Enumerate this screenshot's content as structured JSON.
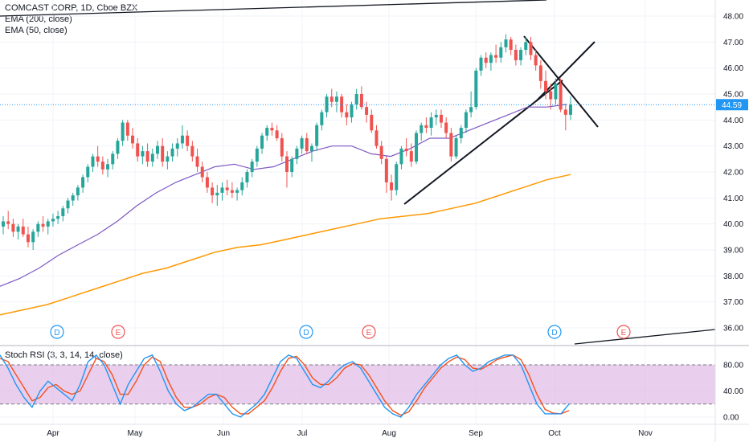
{
  "header": {
    "symbol_line": "COMCAST CORP, 1D, Cboe BZX",
    "ema200_label": "EMA (200, close)",
    "ema50_label": "EMA (50, close)"
  },
  "price_axis": {
    "ticks": [
      "48.00",
      "47.00",
      "46.00",
      "45.00",
      "44.00",
      "43.00",
      "42.00",
      "41.00",
      "40.00",
      "39.00",
      "38.00",
      "37.00",
      "36.00"
    ],
    "current_price": "44.59"
  },
  "time_axis": {
    "labels": [
      "Apr",
      "May",
      "Jun",
      "Jul",
      "Aug",
      "Sep",
      "Oct",
      "Nov"
    ]
  },
  "events": [
    "D",
    "E",
    "D",
    "E",
    "D",
    "E"
  ],
  "stoch_panel": {
    "title": "Stoch RSI (3, 3, 14, 14, close)",
    "ticks": [
      "80.00",
      "40.00",
      "0.00"
    ]
  },
  "colors": {
    "up": "#26a69a",
    "down": "#ef5350",
    "ema50": "#7e57c2",
    "ema200": "#ff9800",
    "stoch_k": "#2196f3",
    "stoch_d": "#f4511e",
    "band": "#e1bee7",
    "event_D": "#2196f3",
    "event_E": "#ef5350"
  },
  "chart_data": {
    "type": "candlestick",
    "title": "COMCAST CORP, 1D, Cboe BZX",
    "series": [
      {
        "name": "COMCAST CORP",
        "kind": "ohlc",
        "values": [
          [
            39.9,
            40.3,
            39.6,
            40.1
          ],
          [
            40.1,
            40.5,
            39.8,
            40.0
          ],
          [
            40.0,
            40.2,
            39.5,
            39.7
          ],
          [
            39.7,
            40.0,
            39.4,
            39.9
          ],
          [
            39.9,
            40.2,
            39.5,
            39.6
          ],
          [
            39.6,
            39.9,
            39.1,
            39.3
          ],
          [
            39.3,
            39.8,
            39.0,
            39.7
          ],
          [
            39.7,
            40.1,
            39.5,
            40.0
          ],
          [
            40.0,
            40.3,
            39.7,
            39.9
          ],
          [
            39.9,
            40.2,
            39.6,
            40.1
          ],
          [
            40.1,
            40.4,
            39.9,
            40.2
          ],
          [
            40.2,
            40.5,
            40.0,
            40.3
          ],
          [
            40.3,
            40.7,
            40.1,
            40.6
          ],
          [
            40.6,
            41.0,
            40.4,
            40.9
          ],
          [
            40.9,
            41.2,
            40.7,
            41.1
          ],
          [
            41.1,
            41.5,
            40.9,
            41.4
          ],
          [
            41.4,
            41.9,
            41.2,
            41.8
          ],
          [
            41.8,
            42.3,
            41.6,
            42.2
          ],
          [
            42.2,
            42.7,
            42.0,
            42.6
          ],
          [
            42.6,
            43.0,
            42.2,
            42.4
          ],
          [
            42.4,
            42.6,
            41.9,
            42.1
          ],
          [
            42.1,
            42.5,
            41.8,
            42.3
          ],
          [
            42.3,
            42.8,
            42.1,
            42.7
          ],
          [
            42.7,
            43.3,
            42.5,
            43.2
          ],
          [
            43.2,
            44.0,
            43.0,
            43.9
          ],
          [
            43.9,
            44.0,
            43.2,
            43.4
          ],
          [
            43.4,
            43.7,
            42.9,
            43.1
          ],
          [
            43.1,
            43.3,
            42.4,
            42.6
          ],
          [
            42.6,
            43.0,
            42.3,
            42.8
          ],
          [
            42.8,
            43.1,
            42.2,
            42.4
          ],
          [
            42.4,
            42.9,
            42.2,
            42.7
          ],
          [
            42.7,
            43.2,
            42.5,
            43.0
          ],
          [
            43.0,
            43.3,
            42.2,
            42.4
          ],
          [
            42.4,
            42.8,
            42.1,
            42.6
          ],
          [
            42.6,
            43.1,
            42.4,
            42.9
          ],
          [
            42.9,
            43.3,
            42.6,
            43.1
          ],
          [
            43.1,
            43.8,
            42.9,
            43.4
          ],
          [
            43.4,
            43.6,
            42.8,
            43.0
          ],
          [
            43.0,
            43.2,
            42.4,
            42.6
          ],
          [
            42.6,
            42.9,
            42.0,
            42.2
          ],
          [
            42.2,
            42.4,
            41.6,
            41.8
          ],
          [
            41.8,
            42.0,
            41.2,
            41.4
          ],
          [
            41.4,
            41.6,
            40.8,
            41.1
          ],
          [
            41.1,
            41.5,
            40.7,
            41.2
          ],
          [
            41.2,
            41.6,
            40.9,
            41.4
          ],
          [
            41.4,
            41.7,
            41.1,
            41.3
          ],
          [
            41.3,
            41.6,
            41.0,
            41.2
          ],
          [
            41.2,
            41.4,
            40.9,
            41.3
          ],
          [
            41.3,
            41.8,
            41.1,
            41.6
          ],
          [
            41.6,
            42.1,
            41.4,
            42.0
          ],
          [
            42.0,
            42.5,
            41.8,
            42.4
          ],
          [
            42.4,
            43.0,
            42.2,
            42.9
          ],
          [
            42.9,
            43.5,
            42.7,
            43.4
          ],
          [
            43.4,
            43.8,
            43.2,
            43.7
          ],
          [
            43.7,
            43.9,
            43.4,
            43.6
          ],
          [
            43.6,
            43.8,
            43.2,
            43.3
          ],
          [
            43.3,
            43.5,
            42.4,
            42.6
          ],
          [
            42.6,
            42.8,
            41.4,
            42.0
          ],
          [
            42.0,
            42.6,
            41.8,
            42.5
          ],
          [
            42.5,
            43.0,
            42.3,
            42.9
          ],
          [
            42.9,
            43.4,
            42.7,
            43.3
          ],
          [
            43.3,
            43.5,
            42.7,
            42.8
          ],
          [
            42.8,
            43.1,
            42.4,
            43.0
          ],
          [
            43.0,
            43.9,
            42.8,
            43.8
          ],
          [
            43.8,
            44.4,
            43.6,
            44.3
          ],
          [
            44.3,
            45.0,
            44.1,
            44.9
          ],
          [
            44.9,
            45.2,
            44.5,
            44.7
          ],
          [
            44.7,
            45.1,
            44.3,
            44.9
          ],
          [
            44.9,
            45.0,
            44.1,
            44.3
          ],
          [
            44.3,
            44.6,
            43.8,
            44.1
          ],
          [
            44.1,
            44.7,
            43.9,
            44.6
          ],
          [
            44.6,
            45.2,
            44.4,
            45.0
          ],
          [
            45.0,
            45.3,
            44.4,
            44.5
          ],
          [
            44.5,
            44.7,
            43.9,
            44.2
          ],
          [
            44.2,
            44.4,
            43.5,
            43.6
          ],
          [
            43.6,
            43.8,
            42.9,
            43.0
          ],
          [
            43.0,
            43.2,
            42.3,
            42.5
          ],
          [
            42.5,
            42.6,
            41.2,
            41.6
          ],
          [
            41.6,
            41.9,
            40.9,
            41.3
          ],
          [
            41.3,
            42.4,
            41.1,
            42.3
          ],
          [
            42.3,
            43.0,
            42.1,
            42.9
          ],
          [
            42.9,
            43.3,
            42.6,
            42.8
          ],
          [
            42.8,
            43.1,
            42.2,
            42.4
          ],
          [
            42.4,
            43.6,
            42.3,
            43.5
          ],
          [
            43.5,
            43.9,
            43.2,
            43.8
          ],
          [
            43.8,
            44.1,
            43.5,
            43.7
          ],
          [
            43.7,
            44.3,
            43.4,
            44.1
          ],
          [
            44.1,
            44.4,
            43.8,
            44.2
          ],
          [
            44.2,
            44.4,
            43.7,
            43.9
          ],
          [
            43.9,
            44.1,
            43.3,
            43.5
          ],
          [
            43.5,
            43.7,
            42.4,
            42.6
          ],
          [
            42.6,
            43.4,
            42.5,
            43.3
          ],
          [
            43.3,
            43.8,
            43.1,
            43.7
          ],
          [
            43.7,
            44.4,
            43.5,
            44.3
          ],
          [
            44.3,
            45.1,
            44.1,
            44.5
          ],
          [
            44.5,
            46.0,
            44.4,
            45.9
          ],
          [
            45.9,
            46.5,
            45.7,
            46.4
          ],
          [
            46.4,
            46.6,
            46.0,
            46.2
          ],
          [
            46.2,
            46.6,
            45.9,
            46.5
          ],
          [
            46.5,
            46.9,
            46.2,
            46.4
          ],
          [
            46.4,
            47.0,
            46.2,
            46.8
          ],
          [
            46.8,
            47.3,
            46.6,
            47.1
          ],
          [
            47.1,
            47.2,
            46.5,
            46.7
          ],
          [
            46.7,
            46.9,
            46.1,
            46.3
          ],
          [
            46.3,
            46.8,
            46.1,
            46.7
          ],
          [
            46.7,
            47.2,
            46.5,
            47.0
          ],
          [
            47.0,
            47.2,
            46.3,
            46.5
          ],
          [
            46.5,
            46.7,
            45.9,
            46.1
          ],
          [
            46.1,
            46.3,
            45.2,
            45.5
          ],
          [
            45.5,
            45.9,
            44.8,
            45.1
          ],
          [
            45.1,
            45.4,
            44.4,
            44.8
          ],
          [
            44.8,
            45.6,
            44.6,
            45.4
          ],
          [
            45.4,
            45.6,
            44.3,
            44.4
          ],
          [
            44.4,
            44.6,
            43.6,
            44.2
          ],
          [
            44.2,
            44.9,
            44.0,
            44.6
          ]
        ]
      },
      {
        "name": "EMA (50, close)",
        "kind": "line",
        "values": [
          37.6,
          37.9,
          38.3,
          38.8,
          39.2,
          39.6,
          40.1,
          40.7,
          41.2,
          41.6,
          41.9,
          42.2,
          42.3,
          42.1,
          42.2,
          42.5,
          42.8,
          43.0,
          43.0,
          42.7,
          42.6,
          42.9,
          43.3,
          43.3,
          43.6,
          43.9,
          44.2,
          44.5,
          44.5,
          44.6
        ]
      },
      {
        "name": "EMA (200, close)",
        "kind": "line",
        "values": [
          36.5,
          36.7,
          36.9,
          37.2,
          37.5,
          37.8,
          38.1,
          38.3,
          38.6,
          38.9,
          39.1,
          39.2,
          39.4,
          39.6,
          39.8,
          40.0,
          40.2,
          40.3,
          40.4,
          40.6,
          40.8,
          41.1,
          41.4,
          41.7,
          41.9
        ]
      }
    ],
    "stoch_rsi": {
      "k": [
        95,
        75,
        50,
        30,
        15,
        40,
        55,
        45,
        35,
        25,
        50,
        85,
        95,
        80,
        50,
        20,
        50,
        70,
        90,
        95,
        70,
        40,
        20,
        10,
        15,
        25,
        35,
        35,
        20,
        5,
        0,
        10,
        20,
        35,
        60,
        85,
        95,
        90,
        70,
        50,
        45,
        55,
        70,
        80,
        85,
        75,
        55,
        35,
        15,
        5,
        0,
        15,
        35,
        50,
        65,
        80,
        90,
        95,
        80,
        70,
        75,
        85,
        90,
        95,
        95,
        80,
        50,
        20,
        5,
        5,
        5,
        20
      ],
      "d": [
        90,
        85,
        65,
        45,
        25,
        30,
        45,
        50,
        40,
        35,
        40,
        65,
        90,
        85,
        65,
        35,
        35,
        55,
        80,
        92,
        85,
        55,
        30,
        15,
        15,
        20,
        30,
        35,
        30,
        15,
        5,
        5,
        15,
        25,
        45,
        70,
        90,
        93,
        80,
        60,
        50,
        50,
        60,
        75,
        82,
        80,
        65,
        45,
        25,
        10,
        3,
        8,
        25,
        45,
        60,
        75,
        85,
        92,
        88,
        75,
        73,
        80,
        88,
        92,
        95,
        88,
        65,
        35,
        12,
        6,
        5,
        10
      ]
    },
    "price_range": [
      35.6,
      48.4
    ],
    "stoch_range": [
      -10,
      115
    ],
    "stoch_levels": [
      80,
      20
    ]
  }
}
